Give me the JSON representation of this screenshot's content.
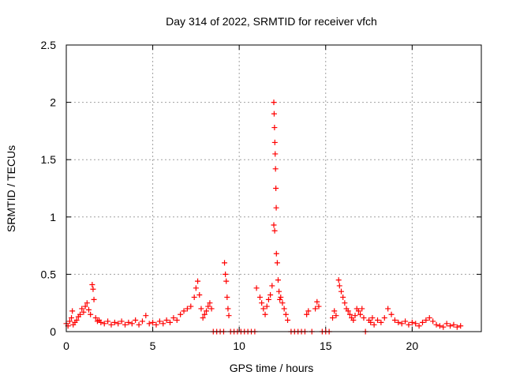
{
  "chart_data": {
    "type": "scatter",
    "title": "Day 314 of 2022, SRMTID for receiver vfch",
    "xlabel": "GPS time / hours",
    "ylabel": "SRMTID / TECUs",
    "xlim": [
      0,
      24
    ],
    "ylim": [
      0,
      2.5
    ],
    "xticks": [
      0,
      5,
      10,
      15,
      20
    ],
    "yticks": [
      0,
      0.5,
      1,
      1.5,
      2,
      2.5
    ],
    "xtick_labels": [
      "0",
      "5",
      "10",
      "15",
      "20"
    ],
    "ytick_labels": [
      "0",
      "0.5",
      "1",
      "1.5",
      "2",
      "2.5"
    ],
    "grid": true,
    "marker": "+",
    "color": "#ff0000",
    "series": [
      {
        "name": "SRMTID",
        "points": [
          [
            0.0,
            0.07
          ],
          [
            0.1,
            0.05
          ],
          [
            0.2,
            0.09
          ],
          [
            0.3,
            0.12
          ],
          [
            0.35,
            0.18
          ],
          [
            0.4,
            0.06
          ],
          [
            0.5,
            0.08
          ],
          [
            0.6,
            0.1
          ],
          [
            0.7,
            0.13
          ],
          [
            0.8,
            0.15
          ],
          [
            0.9,
            0.2
          ],
          [
            1.0,
            0.17
          ],
          [
            1.1,
            0.22
          ],
          [
            1.2,
            0.25
          ],
          [
            1.3,
            0.19
          ],
          [
            1.4,
            0.15
          ],
          [
            1.5,
            0.41
          ],
          [
            1.55,
            0.37
          ],
          [
            1.6,
            0.28
          ],
          [
            1.7,
            0.12
          ],
          [
            1.8,
            0.09
          ],
          [
            1.9,
            0.1
          ],
          [
            2.0,
            0.08
          ],
          [
            2.2,
            0.07
          ],
          [
            2.4,
            0.09
          ],
          [
            2.6,
            0.06
          ],
          [
            2.8,
            0.08
          ],
          [
            3.0,
            0.07
          ],
          [
            3.2,
            0.09
          ],
          [
            3.4,
            0.06
          ],
          [
            3.6,
            0.08
          ],
          [
            3.8,
            0.07
          ],
          [
            4.0,
            0.1
          ],
          [
            4.2,
            0.06
          ],
          [
            4.4,
            0.09
          ],
          [
            4.6,
            0.14
          ],
          [
            4.8,
            0.07
          ],
          [
            5.0,
            0.08
          ],
          [
            5.2,
            0.06
          ],
          [
            5.4,
            0.09
          ],
          [
            5.6,
            0.07
          ],
          [
            5.8,
            0.1
          ],
          [
            6.0,
            0.08
          ],
          [
            6.2,
            0.12
          ],
          [
            6.4,
            0.1
          ],
          [
            6.6,
            0.15
          ],
          [
            6.8,
            0.18
          ],
          [
            7.0,
            0.2
          ],
          [
            7.2,
            0.22
          ],
          [
            7.4,
            0.3
          ],
          [
            7.5,
            0.38
          ],
          [
            7.6,
            0.44
          ],
          [
            7.7,
            0.32
          ],
          [
            7.8,
            0.2
          ],
          [
            7.9,
            0.12
          ],
          [
            8.0,
            0.15
          ],
          [
            8.1,
            0.18
          ],
          [
            8.2,
            0.22
          ],
          [
            8.3,
            0.25
          ],
          [
            8.4,
            0.2
          ],
          [
            8.5,
            0.0
          ],
          [
            8.7,
            0.0
          ],
          [
            8.9,
            0.0
          ],
          [
            9.1,
            0.0
          ],
          [
            9.15,
            0.6
          ],
          [
            9.2,
            0.5
          ],
          [
            9.25,
            0.44
          ],
          [
            9.3,
            0.3
          ],
          [
            9.35,
            0.2
          ],
          [
            9.4,
            0.14
          ],
          [
            9.5,
            0.0
          ],
          [
            9.7,
            0.0
          ],
          [
            9.9,
            0.0
          ],
          [
            10.1,
            0.0
          ],
          [
            10.3,
            0.0
          ],
          [
            10.5,
            0.0
          ],
          [
            10.7,
            0.0
          ],
          [
            10.9,
            0.0
          ],
          [
            11.0,
            0.38
          ],
          [
            11.2,
            0.3
          ],
          [
            11.3,
            0.25
          ],
          [
            11.4,
            0.2
          ],
          [
            11.5,
            0.15
          ],
          [
            11.6,
            0.22
          ],
          [
            11.7,
            0.28
          ],
          [
            11.8,
            0.32
          ],
          [
            11.9,
            0.4
          ],
          [
            12.0,
            2.0
          ],
          [
            12.02,
            1.9
          ],
          [
            12.04,
            1.78
          ],
          [
            12.06,
            1.65
          ],
          [
            12.08,
            1.55
          ],
          [
            12.1,
            1.42
          ],
          [
            12.12,
            1.25
          ],
          [
            12.14,
            1.08
          ],
          [
            12.0,
            0.93
          ],
          [
            12.05,
            0.88
          ],
          [
            12.15,
            0.68
          ],
          [
            12.2,
            0.6
          ],
          [
            12.25,
            0.45
          ],
          [
            12.3,
            0.35
          ],
          [
            12.35,
            0.28
          ],
          [
            12.4,
            0.3
          ],
          [
            12.5,
            0.25
          ],
          [
            12.6,
            0.2
          ],
          [
            12.7,
            0.15
          ],
          [
            12.8,
            0.1
          ],
          [
            13.0,
            0.0
          ],
          [
            13.2,
            0.0
          ],
          [
            13.4,
            0.0
          ],
          [
            13.6,
            0.0
          ],
          [
            13.8,
            0.0
          ],
          [
            13.9,
            0.15
          ],
          [
            14.0,
            0.18
          ],
          [
            14.2,
            0.0
          ],
          [
            14.4,
            0.2
          ],
          [
            14.5,
            0.26
          ],
          [
            14.6,
            0.22
          ],
          [
            14.8,
            0.0
          ],
          [
            15.0,
            0.0
          ],
          [
            15.2,
            0.0
          ],
          [
            15.4,
            0.12
          ],
          [
            15.5,
            0.18
          ],
          [
            15.6,
            0.14
          ],
          [
            15.75,
            0.45
          ],
          [
            15.8,
            0.4
          ],
          [
            15.9,
            0.35
          ],
          [
            16.0,
            0.3
          ],
          [
            16.1,
            0.25
          ],
          [
            16.2,
            0.2
          ],
          [
            16.3,
            0.18
          ],
          [
            16.4,
            0.15
          ],
          [
            16.5,
            0.12
          ],
          [
            16.6,
            0.1
          ],
          [
            16.7,
            0.14
          ],
          [
            16.8,
            0.2
          ],
          [
            16.9,
            0.18
          ],
          [
            17.0,
            0.15
          ],
          [
            17.1,
            0.2
          ],
          [
            17.2,
            0.12
          ],
          [
            17.3,
            0.0
          ],
          [
            17.5,
            0.1
          ],
          [
            17.6,
            0.08
          ],
          [
            17.7,
            0.12
          ],
          [
            17.8,
            0.06
          ],
          [
            18.0,
            0.1
          ],
          [
            18.2,
            0.08
          ],
          [
            18.4,
            0.12
          ],
          [
            18.6,
            0.2
          ],
          [
            18.8,
            0.15
          ],
          [
            19.0,
            0.1
          ],
          [
            19.2,
            0.08
          ],
          [
            19.4,
            0.07
          ],
          [
            19.6,
            0.09
          ],
          [
            19.8,
            0.06
          ],
          [
            20.0,
            0.08
          ],
          [
            20.2,
            0.07
          ],
          [
            20.4,
            0.05
          ],
          [
            20.6,
            0.08
          ],
          [
            20.8,
            0.1
          ],
          [
            21.0,
            0.12
          ],
          [
            21.2,
            0.09
          ],
          [
            21.4,
            0.06
          ],
          [
            21.6,
            0.05
          ],
          [
            21.8,
            0.04
          ],
          [
            22.0,
            0.07
          ],
          [
            22.2,
            0.05
          ],
          [
            22.4,
            0.06
          ],
          [
            22.6,
            0.04
          ],
          [
            22.8,
            0.05
          ]
        ]
      }
    ]
  }
}
